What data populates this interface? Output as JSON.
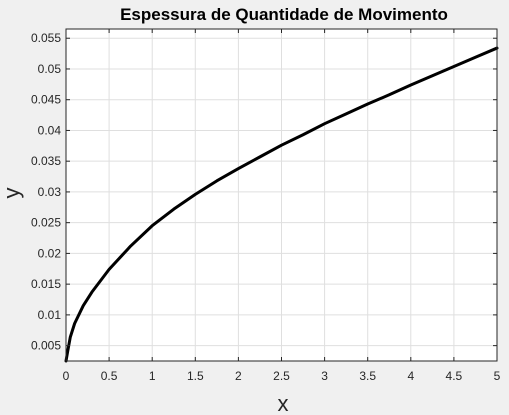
{
  "chart_data": {
    "type": "line",
    "title": "Espessura de Quantidade de Movimento",
    "xlabel": "x",
    "ylabel": "y",
    "xlim": [
      0,
      5
    ],
    "ylim": [
      0.0025,
      0.0565
    ],
    "xticks": [
      0,
      0.5,
      1,
      1.5,
      2,
      2.5,
      3,
      3.5,
      4,
      4.5,
      5
    ],
    "xtick_labels": [
      "0",
      "0.5",
      "1",
      "1.5",
      "2",
      "2.5",
      "3",
      "3.5",
      "4",
      "4.5",
      "5"
    ],
    "yticks": [
      0.005,
      0.01,
      0.015,
      0.02,
      0.025,
      0.03,
      0.035,
      0.04,
      0.045,
      0.05,
      0.055
    ],
    "ytick_labels": [
      "0.005",
      "0.01",
      "0.015",
      "0.02",
      "0.025",
      "0.03",
      "0.035",
      "0.04",
      "0.045",
      "0.05",
      "0.055"
    ],
    "grid": true,
    "series": [
      {
        "color": "#000000",
        "x": [
          0,
          0.02,
          0.05,
          0.1,
          0.2,
          0.3,
          0.5,
          0.75,
          1,
          1.25,
          1.5,
          1.75,
          2,
          2.25,
          2.5,
          2.75,
          3,
          3.25,
          3.5,
          3.75,
          4,
          4.25,
          4.5,
          4.75,
          5
        ],
        "y": [
          0.0025,
          0.0041,
          0.0064,
          0.0086,
          0.0115,
          0.0137,
          0.0174,
          0.0212,
          0.0245,
          0.0272,
          0.0296,
          0.0318,
          0.0338,
          0.0357,
          0.0376,
          0.0393,
          0.0411,
          0.0427,
          0.0443,
          0.0458,
          0.0474,
          0.0489,
          0.0504,
          0.0519,
          0.0534
        ]
      }
    ]
  }
}
